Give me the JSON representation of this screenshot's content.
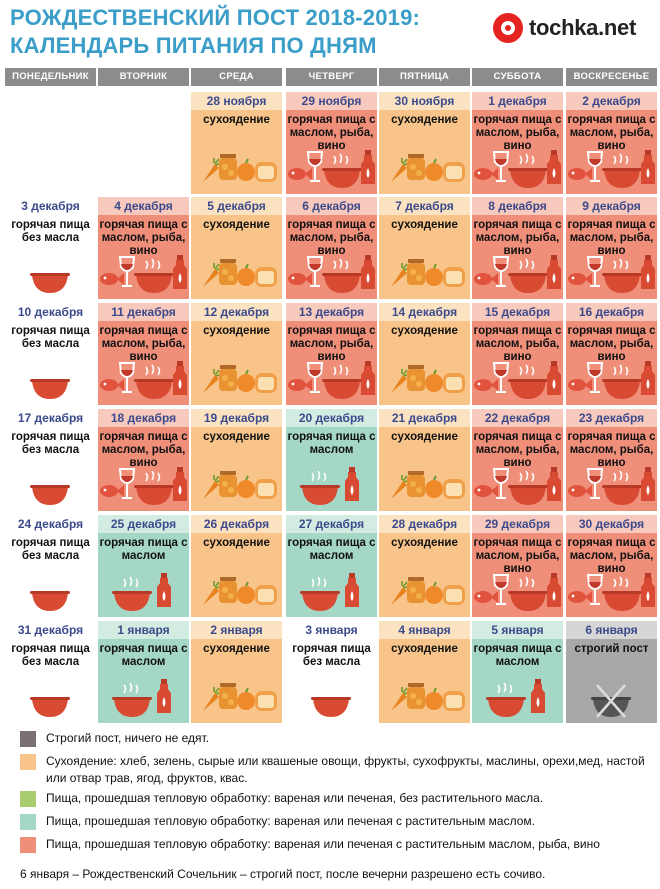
{
  "header": {
    "title_line1": "РОЖДЕСТВЕНСКИЙ ПОСТ 2018-2019:",
    "title_line2": "КАЛЕНДАРЬ ПИТАНИЯ ПО ДНЯМ",
    "logo_text": "tochka.net"
  },
  "colors": {
    "title": "#3b9ec8",
    "strict": "#7a6f73",
    "dry": "#f8c48a",
    "no_oil": "#a8cd6e",
    "oil": "#a4d7c6",
    "hot": "#ef8f7a"
  },
  "weekdays": [
    "ПОНЕДЕЛЬНИК",
    "ВТОРНИК",
    "СРЕДА",
    "ЧЕТВЕРГ",
    "ПЯТНИЦА",
    "СУББОТА",
    "ВОСКРЕСЕНЬЕ"
  ],
  "labels": {
    "dry": "сухоядение",
    "hot": "горячая пища с маслом, рыба, вино",
    "no_oil": "горячая пища без масла",
    "oil": "горячая пища с маслом",
    "strict": "строгий пост"
  },
  "icon_sets": {
    "dry": [
      "carrot-icon",
      "jar-icon",
      "apple-icon",
      "bread-icon"
    ],
    "hot": [
      "fish-icon",
      "wine-glass-icon",
      "pot-icon",
      "oil-bottle-icon"
    ],
    "no_oil": [
      "pot-icon"
    ],
    "oil": [
      "pot-icon",
      "oil-bottle-icon"
    ],
    "strict": [
      "crossed-pot-icon"
    ]
  },
  "weeks": [
    [
      null,
      null,
      {
        "date": "28 ноября",
        "type": "dry"
      },
      {
        "date": "29 ноября",
        "type": "hot"
      },
      {
        "date": "30 ноября",
        "type": "dry"
      },
      {
        "date": "1 декабря",
        "type": "hot"
      },
      {
        "date": "2 декабря",
        "type": "hot"
      }
    ],
    [
      {
        "date": "3 декабря",
        "type": "no_oil"
      },
      {
        "date": "4 декабря",
        "type": "hot"
      },
      {
        "date": "5 декабря",
        "type": "dry"
      },
      {
        "date": "6 декабря",
        "type": "hot"
      },
      {
        "date": "7 декабря",
        "type": "dry"
      },
      {
        "date": "8 декабря",
        "type": "hot"
      },
      {
        "date": "9 декабря",
        "type": "hot"
      }
    ],
    [
      {
        "date": "10 декабря",
        "type": "no_oil"
      },
      {
        "date": "11 декабря",
        "type": "hot"
      },
      {
        "date": "12 декабря",
        "type": "dry"
      },
      {
        "date": "13 декабря",
        "type": "hot"
      },
      {
        "date": "14 декабря",
        "type": "dry"
      },
      {
        "date": "15 декабря",
        "type": "hot"
      },
      {
        "date": "16 декабря",
        "type": "hot"
      }
    ],
    [
      {
        "date": "17 декабря",
        "type": "no_oil"
      },
      {
        "date": "18 декабря",
        "type": "hot"
      },
      {
        "date": "19 декабря",
        "type": "dry"
      },
      {
        "date": "20 декабря",
        "type": "oil"
      },
      {
        "date": "21 декабря",
        "type": "dry"
      },
      {
        "date": "22 декабря",
        "type": "hot"
      },
      {
        "date": "23 декабря",
        "type": "hot"
      }
    ],
    [
      {
        "date": "24 декабря",
        "type": "no_oil"
      },
      {
        "date": "25 декабря",
        "type": "oil"
      },
      {
        "date": "26 декабря",
        "type": "dry"
      },
      {
        "date": "27 декабря",
        "type": "oil"
      },
      {
        "date": "28 декабря",
        "type": "dry"
      },
      {
        "date": "29 декабря",
        "type": "hot"
      },
      {
        "date": "30 декабря",
        "type": "hot"
      }
    ],
    [
      {
        "date": "31 декабря",
        "type": "no_oil"
      },
      {
        "date": "1 января",
        "type": "oil"
      },
      {
        "date": "2 января",
        "type": "dry"
      },
      {
        "date": "3 января",
        "type": "no_oil"
      },
      {
        "date": "4 января",
        "type": "dry"
      },
      {
        "date": "5 января",
        "type": "oil"
      },
      {
        "date": "6 января",
        "type": "strict"
      }
    ]
  ],
  "legend": [
    {
      "type": "strict",
      "text": "Строгий пост, ничего не едят."
    },
    {
      "type": "dry",
      "text": "Сухоядение: хлеб, зелень, сырые или квашеные овощи, фрукты, сухофрукты, маслины, орехи,мед, настой или отвар трав, ягод, фруктов, квас."
    },
    {
      "type": "no_oil",
      "text": "Пища, прошедшая тепловую обработку: вареная или печеная, без растительного масла."
    },
    {
      "type": "oil",
      "text": "Пища, прошедшая тепловую обработку: вареная или печеная с растительным маслом."
    },
    {
      "type": "hot",
      "text": "Пища, прошедшая тепловую обработку: вареная или печеная с растительным маслом, рыба, вино"
    }
  ],
  "footer": "6 января – Рождественский Сочельник – строгий пост, после вечерни разрешено есть сочиво."
}
